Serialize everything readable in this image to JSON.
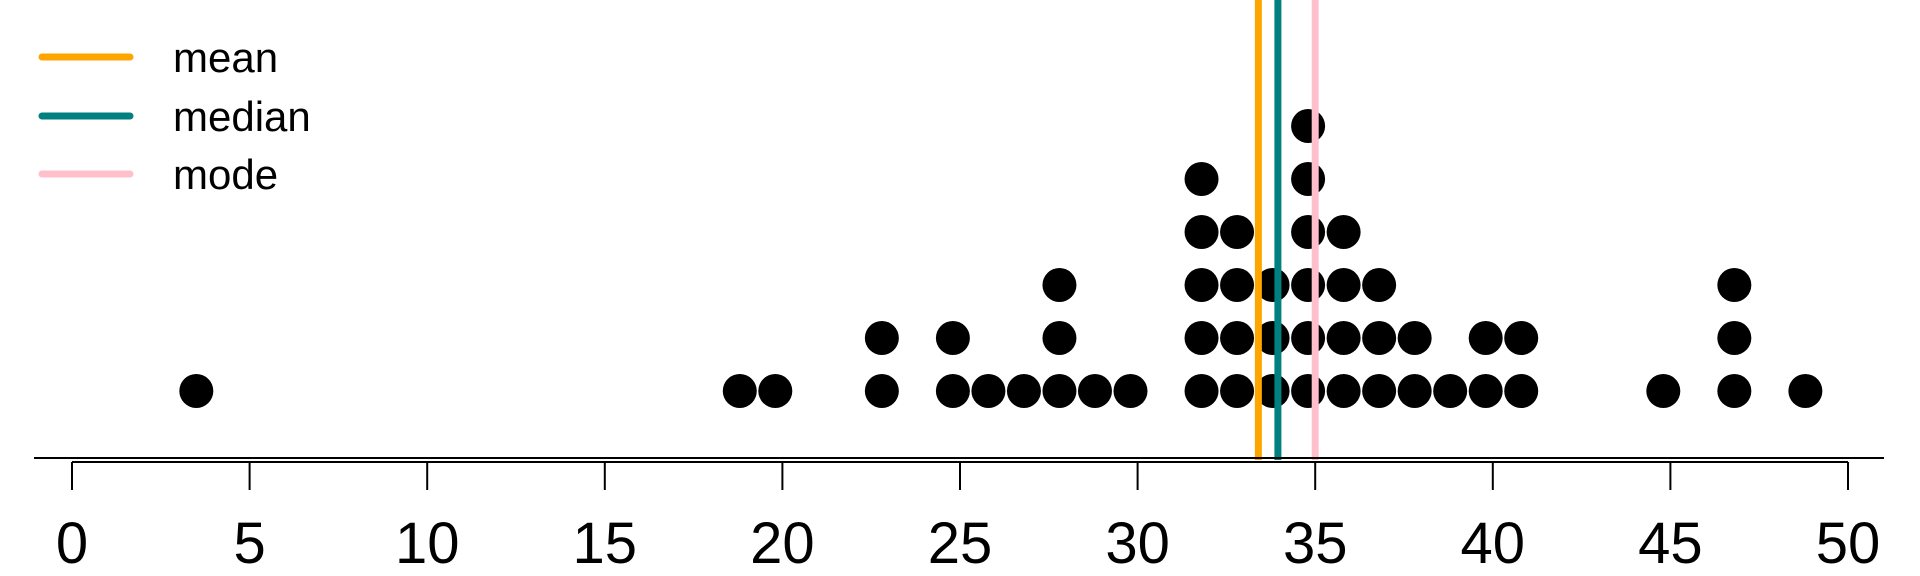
{
  "chart_data": {
    "type": "dot",
    "title": "",
    "xlabel": "",
    "ylabel": "",
    "xlim": [
      0,
      50
    ],
    "xticks": [
      0,
      5,
      10,
      15,
      20,
      25,
      30,
      35,
      40,
      45,
      50
    ],
    "grid": false,
    "legend_position": "top-left",
    "points": [
      {
        "x": 3.5,
        "count": 1
      },
      {
        "x": 18.8,
        "count": 1
      },
      {
        "x": 19.8,
        "count": 1
      },
      {
        "x": 22.8,
        "count": 2
      },
      {
        "x": 24.8,
        "count": 2
      },
      {
        "x": 25.8,
        "count": 1
      },
      {
        "x": 26.8,
        "count": 1
      },
      {
        "x": 27.8,
        "count": 3
      },
      {
        "x": 28.8,
        "count": 1
      },
      {
        "x": 29.8,
        "count": 1
      },
      {
        "x": 31.8,
        "count": 5
      },
      {
        "x": 32.8,
        "count": 4
      },
      {
        "x": 33.8,
        "count": 3
      },
      {
        "x": 34.8,
        "count": 6
      },
      {
        "x": 35.8,
        "count": 4
      },
      {
        "x": 36.8,
        "count": 3
      },
      {
        "x": 37.8,
        "count": 2
      },
      {
        "x": 38.8,
        "count": 1
      },
      {
        "x": 39.8,
        "count": 2
      },
      {
        "x": 40.8,
        "count": 2
      },
      {
        "x": 44.8,
        "count": 1
      },
      {
        "x": 46.8,
        "count": 3
      },
      {
        "x": 48.8,
        "count": 1
      }
    ],
    "lines": [
      {
        "name": "mean",
        "x": 33.4,
        "color": "#FFA500"
      },
      {
        "name": "median",
        "x": 33.95,
        "color": "#008080"
      },
      {
        "name": "mode",
        "x": 35.0,
        "color": "#FFC0CB"
      }
    ]
  }
}
